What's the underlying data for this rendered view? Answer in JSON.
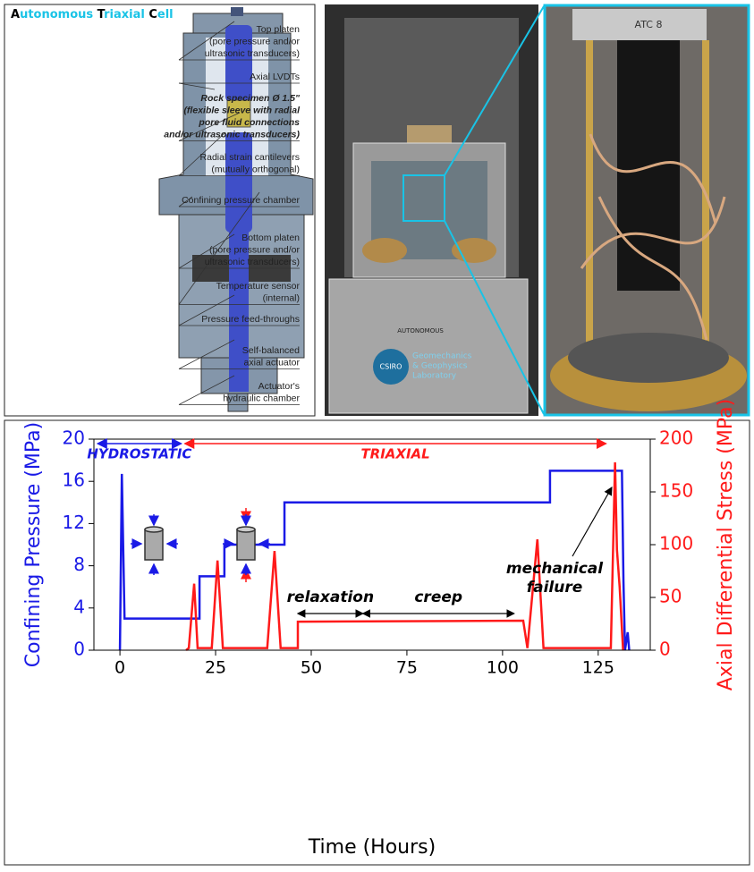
{
  "diagram": {
    "title": "Autonomous Triaxial Cell",
    "labels": [
      [
        "Top platen",
        "(pore pressure and/or",
        "ultrasonic transducers)"
      ],
      [
        "Axial LVDTs"
      ],
      [
        "Rock specimen Ø 1.5\"",
        "(flexible sleeve with radial",
        "pore fluid connections",
        "and/or ultrasonic transducers)"
      ],
      [
        "Radial strain cantilevers",
        "(mutually orthogonal)"
      ],
      [
        "Confining pressure chamber"
      ],
      [
        "Bottom platen",
        "(pore pressure and/or",
        "ultrasonic transducers)"
      ],
      [
        "Temperature sensor",
        "(internal)"
      ],
      [
        "Pressure feed-throughs"
      ],
      [
        "Self-balanced",
        "axial actuator"
      ],
      [
        "Actuator's",
        "hydraulic chamber"
      ]
    ]
  },
  "photo": {
    "badge": "CSIRO",
    "logo": [
      "Geomechanics",
      "& Geophysics",
      "Laboratory"
    ],
    "panel": "AUTONOMOUS",
    "tag": "ATC 8"
  },
  "chart_data": {
    "type": "line",
    "x_label": "Time (Hours)",
    "y_label": "Confining Pressure (MPa)",
    "y2_label": "Axial Differential Stress (MPa)",
    "annotations": [
      "HYDROSTATIC",
      "TRIAXIAL",
      "relaxation",
      "creep",
      "mechanical",
      "failure"
    ],
    "xlim": [
      -6.8,
      138.6
    ],
    "xticks": [
      0,
      25,
      50,
      75,
      100,
      125
    ],
    "ylim": [
      0,
      20
    ],
    "yticks": [
      0,
      4,
      8,
      12,
      16,
      20
    ],
    "y2lim": [
      0,
      200
    ],
    "y2ticks": [
      0,
      50,
      100,
      150,
      200
    ],
    "series": [
      {
        "color": "#1a1ae6",
        "axis": "y",
        "x": [
          0,
          0.5,
          1.2,
          20.8,
          20.8,
          27.3,
          27.3,
          43,
          43,
          112.4,
          112.4,
          131.2,
          131.6,
          132,
          132.7,
          133.1
        ],
        "values": [
          0,
          16.7,
          3,
          3,
          7,
          7,
          10,
          10,
          14,
          14,
          17,
          17,
          6.5,
          0,
          1.7,
          0
        ]
      },
      {
        "color": "#ff1a1a",
        "axis": "y2",
        "x": [
          17.3,
          18,
          19.4,
          20.3,
          24,
          25.5,
          26.9,
          38.5,
          40.4,
          42,
          46.5,
          46.5,
          105.4,
          106.5,
          109.1,
          110.7,
          128.3,
          129.4,
          129.9,
          130.6,
          131.5
        ],
        "values": [
          0,
          2,
          63,
          2,
          2,
          85,
          2,
          2,
          94,
          2,
          2,
          27,
          28,
          2,
          105,
          2,
          2,
          178,
          95,
          60,
          0
        ]
      }
    ]
  }
}
